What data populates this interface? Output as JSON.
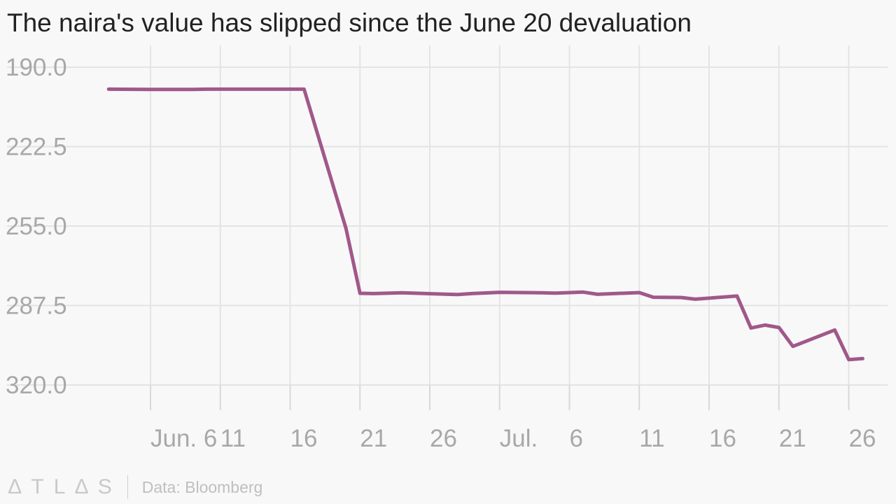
{
  "chart_data": {
    "type": "line",
    "title": "The naira's value has slipped since the June 20 devaluation",
    "xlabel": "",
    "ylabel": "",
    "y_inverted": true,
    "ylim": [
      190.0,
      320.0
    ],
    "y_ticks": [
      "190.0",
      "222.5",
      "255.0",
      "287.5",
      "320.0"
    ],
    "x_tick_labels": [
      {
        "date": "2016-06-06",
        "label": "Jun. 6"
      },
      {
        "date": "2016-06-11",
        "label": "11"
      },
      {
        "date": "2016-06-16",
        "label": "16"
      },
      {
        "date": "2016-06-21",
        "label": "21"
      },
      {
        "date": "2016-06-26",
        "label": "26"
      },
      {
        "date": "2016-07-01",
        "label": "Jul."
      },
      {
        "date": "2016-07-06",
        "label": "6"
      },
      {
        "date": "2016-07-11",
        "label": "11"
      },
      {
        "date": "2016-07-16",
        "label": "16"
      },
      {
        "date": "2016-07-21",
        "label": "21"
      },
      {
        "date": "2016-07-26",
        "label": "26"
      }
    ],
    "grid": true,
    "series": [
      {
        "color": "#a0588a",
        "points": [
          {
            "x": "2016-06-03",
            "y": 199.0
          },
          {
            "x": "2016-06-06",
            "y": 199.1
          },
          {
            "x": "2016-06-09",
            "y": 199.1
          },
          {
            "x": "2016-06-10",
            "y": 199.0
          },
          {
            "x": "2016-06-13",
            "y": 199.0
          },
          {
            "x": "2016-06-14",
            "y": 199.0
          },
          {
            "x": "2016-06-15",
            "y": 199.0
          },
          {
            "x": "2016-06-16",
            "y": 199.0
          },
          {
            "x": "2016-06-17",
            "y": 199.0
          },
          {
            "x": "2016-06-20",
            "y": 256.0
          },
          {
            "x": "2016-06-21",
            "y": 282.5
          },
          {
            "x": "2016-06-22",
            "y": 282.6
          },
          {
            "x": "2016-06-24",
            "y": 282.3
          },
          {
            "x": "2016-06-28",
            "y": 283.0
          },
          {
            "x": "2016-06-29",
            "y": 282.6
          },
          {
            "x": "2016-07-01",
            "y": 282.1
          },
          {
            "x": "2016-07-04",
            "y": 282.3
          },
          {
            "x": "2016-07-05",
            "y": 282.4
          },
          {
            "x": "2016-07-07",
            "y": 282.0
          },
          {
            "x": "2016-07-08",
            "y": 282.9
          },
          {
            "x": "2016-07-11",
            "y": 282.2
          },
          {
            "x": "2016-07-12",
            "y": 284.1
          },
          {
            "x": "2016-07-14",
            "y": 284.2
          },
          {
            "x": "2016-07-15",
            "y": 284.9
          },
          {
            "x": "2016-07-18",
            "y": 283.6
          },
          {
            "x": "2016-07-19",
            "y": 296.7
          },
          {
            "x": "2016-07-20",
            "y": 295.5
          },
          {
            "x": "2016-07-21",
            "y": 296.5
          },
          {
            "x": "2016-07-22",
            "y": 304.2
          },
          {
            "x": "2016-07-25",
            "y": 297.5
          },
          {
            "x": "2016-07-26",
            "y": 309.6
          },
          {
            "x": "2016-07-27",
            "y": 309.2
          }
        ]
      }
    ]
  },
  "footer": {
    "brand_letters": [
      "∆",
      "T",
      "L",
      "∆",
      "S"
    ],
    "source": "Data: Bloomberg"
  }
}
